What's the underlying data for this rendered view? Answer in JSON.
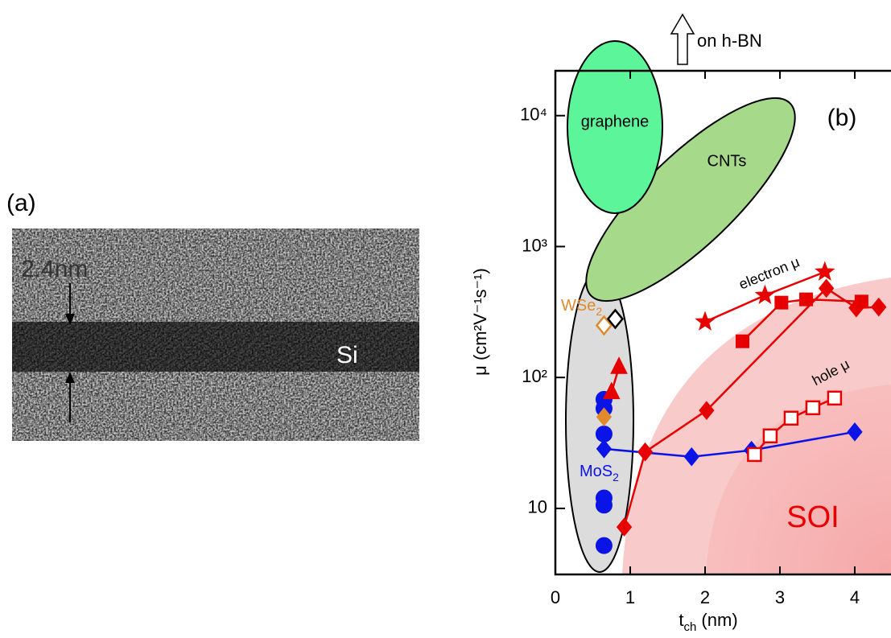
{
  "panel_a": {
    "label": "(a)",
    "scale_text": "2.4nm",
    "material": "Si"
  },
  "chart_data": {
    "type": "scatter",
    "panel_label": "(b)",
    "xlabel": [
      "t",
      "ch",
      " (nm)"
    ],
    "ylabel": "μ (cm²V⁻¹s⁻¹)",
    "xlim": [
      0,
      4.5
    ],
    "ylim": [
      3.13,
      22000
    ],
    "log_y": true,
    "xticks": [
      0,
      1,
      2,
      3,
      4
    ],
    "yticks": [
      10,
      {
        "value": 100,
        "label": "10²"
      },
      {
        "value": 1000,
        "label": "10³"
      },
      {
        "value": 10000,
        "label": "10⁴"
      }
    ],
    "annotations": {
      "electron": "electron μ",
      "hole": "hole μ",
      "soi": "SOI",
      "graphene": "graphene",
      "cnts": "CNTs",
      "wse2": [
        "WSe",
        "2"
      ],
      "mos2": [
        "MoS",
        "2"
      ],
      "hbn": "on h-BN"
    },
    "series": [
      {
        "marker": "circle",
        "color": "#0a14e6",
        "filled": true,
        "line": false,
        "x": [
          0.65,
          0.65,
          0.65,
          0.65,
          0.65,
          0.65
        ],
        "values": [
          68,
          58,
          37,
          12,
          10.6,
          5.2
        ]
      },
      {
        "marker": "diamond",
        "color": "#e08a2e",
        "filled": true,
        "line": false,
        "x": [
          0.65
        ],
        "values": [
          50
        ]
      },
      {
        "marker": "diamond",
        "color": "#e08a2e",
        "filled": false,
        "line": false,
        "x": [
          0.65
        ],
        "values": [
          250
        ]
      },
      {
        "marker": "diamond",
        "color": "#000000",
        "filled": false,
        "line": false,
        "x": [
          0.8
        ],
        "values": [
          280
        ]
      },
      {
        "marker": "diamond",
        "color": "#0a14e6",
        "filled": true,
        "line": true,
        "x": [
          0.65,
          1.82,
          2.62,
          4.0
        ],
        "values": [
          28.5,
          24.8,
          27.8,
          38.4
        ]
      },
      {
        "marker": "triangle",
        "color": "#e60000",
        "filled": true,
        "line": true,
        "x": [
          0.75,
          0.85
        ],
        "values": [
          77,
          120
        ]
      },
      {
        "marker": "diamond",
        "color": "#e60000",
        "filled": true,
        "line": true,
        "x": [
          0.92,
          1.2,
          2.02,
          3.62,
          4.02,
          4.32
        ],
        "values": [
          7.2,
          27,
          56,
          480,
          340,
          345
        ]
      },
      {
        "marker": "square",
        "color": "#e60000",
        "filled": true,
        "line": true,
        "x": [
          2.5,
          3.02,
          3.35,
          4.09
        ],
        "values": [
          189,
          373,
          395,
          380
        ]
      },
      {
        "marker": "star",
        "color": "#e60000",
        "filled": true,
        "line": true,
        "x": [
          2.0,
          2.8,
          3.6
        ],
        "values": [
          266,
          424,
          640
        ]
      },
      {
        "marker": "square",
        "color": "#e60000",
        "filled": false,
        "line": true,
        "x": [
          2.66,
          2.87,
          3.15,
          3.44,
          3.73
        ],
        "values": [
          25.8,
          35.8,
          48.9,
          58.7,
          69.6
        ]
      }
    ]
  }
}
